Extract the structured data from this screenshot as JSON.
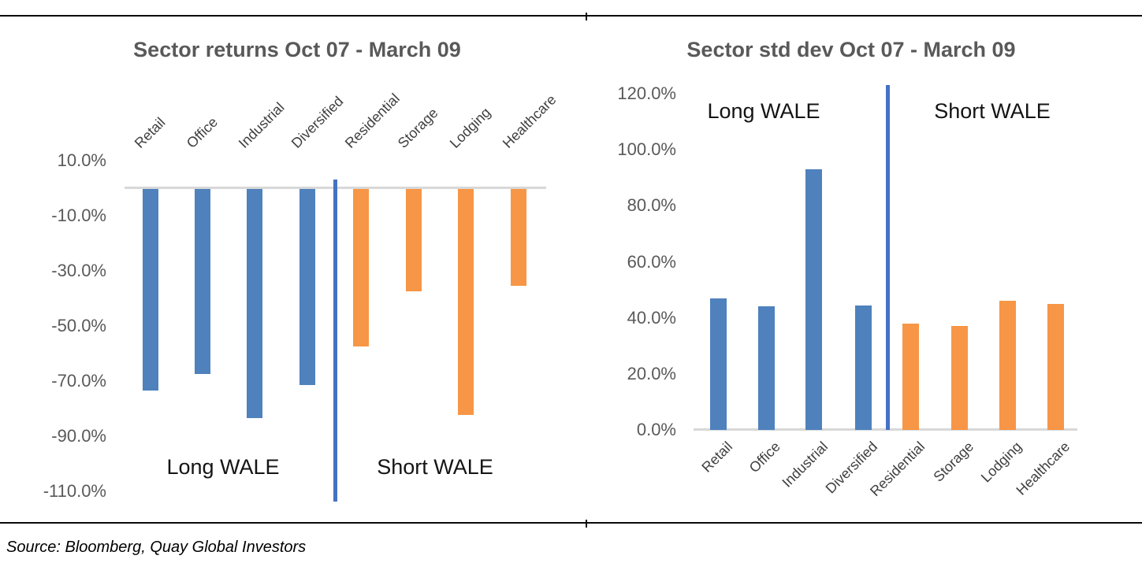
{
  "source_note": "Source: Bloomberg, Quay Global Investors",
  "colors": {
    "long_wale_bar": "#4F81BD",
    "short_wale_bar": "#F79646",
    "divider_line": "#4472C4",
    "baseline_gray": "#D8D8D8",
    "axis_label_gray": "#595959",
    "category_label": "#3F3F3F",
    "title_gray": "#595959"
  },
  "chart_data": [
    {
      "id": "returns",
      "type": "bar",
      "title": "Sector returns Oct 07 - March 09",
      "categories": [
        "Retail",
        "Office",
        "Industrial",
        "Diversified",
        "Residential",
        "Storage",
        "Lodging",
        "Healthcare"
      ],
      "values": [
        -73,
        -67,
        -83,
        -71,
        -57,
        -37,
        -82,
        -35
      ],
      "unit": "%",
      "groups": [
        "long",
        "long",
        "long",
        "long",
        "short",
        "short",
        "short",
        "short"
      ],
      "group_colors": {
        "long": "#4F81BD",
        "short": "#F79646"
      },
      "annotations": {
        "long": "Long WALE",
        "short": "Short WALE"
      },
      "divider_after_index": 3,
      "ytick_labels": [
        "10.0%",
        "-10.0%",
        "-30.0%",
        "-50.0%",
        "-70.0%",
        "-90.0%",
        "-110.0%"
      ],
      "ytick_values": [
        10,
        -10,
        -30,
        -50,
        -70,
        -90,
        -110
      ],
      "ylim": [
        -110,
        10
      ],
      "grid": false,
      "legend": "none",
      "category_label_position": "above-axis-rotated-45"
    },
    {
      "id": "stddev",
      "type": "bar",
      "title": "Sector std dev Oct 07 - March 09",
      "categories": [
        "Retail",
        "Office",
        "Industrial",
        "Diversified",
        "Residential",
        "Storage",
        "Lodging",
        "Healthcare"
      ],
      "values": [
        47,
        44,
        93,
        44.5,
        38,
        37,
        46,
        45
      ],
      "unit": "%",
      "groups": [
        "long",
        "long",
        "long",
        "long",
        "short",
        "short",
        "short",
        "short"
      ],
      "group_colors": {
        "long": "#4F81BD",
        "short": "#F79646"
      },
      "annotations": {
        "long": "Long WALE",
        "short": "Short WALE"
      },
      "divider_after_index": 3,
      "ytick_labels": [
        "120.0%",
        "100.0%",
        "80.0%",
        "60.0%",
        "40.0%",
        "20.0%",
        "0.0%"
      ],
      "ytick_values": [
        120,
        100,
        80,
        60,
        40,
        20,
        0
      ],
      "ylim": [
        0,
        120
      ],
      "grid": false,
      "legend": "none",
      "category_label_position": "below-axis-rotated-45"
    }
  ]
}
